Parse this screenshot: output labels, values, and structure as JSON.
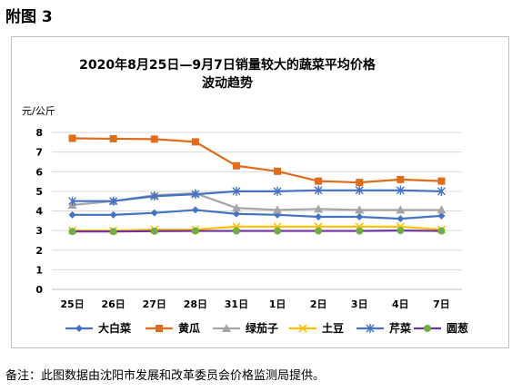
{
  "heading": "附图 3",
  "note": "备注：此图数据由沈阳市发展和改革委员会价格监测局提供。",
  "chart_data": {
    "type": "line",
    "title": [
      "2020年8月25日—9月7日销量较大的蔬菜平均价格",
      "波动趋势"
    ],
    "ylabel": "元/公斤",
    "categories": [
      "25日",
      "26日",
      "27日",
      "28日",
      "31日",
      "1日",
      "2日",
      "3日",
      "4日",
      "7日"
    ],
    "ylim": [
      0,
      8
    ],
    "yticks": [
      "0",
      "1",
      "2",
      "3",
      "4",
      "5",
      "6",
      "7",
      "8"
    ],
    "grid": "horizontal",
    "legend": "bottom",
    "series": [
      {
        "name": "大白菜",
        "color": "#4472c4",
        "marker": "diamond",
        "values": [
          3.8,
          3.8,
          3.9,
          4.05,
          3.85,
          3.8,
          3.7,
          3.7,
          3.6,
          3.75
        ]
      },
      {
        "name": "黄瓜",
        "color": "#e06c1c",
        "marker": "square",
        "values": [
          7.7,
          7.68,
          7.66,
          7.52,
          6.3,
          6.02,
          5.52,
          5.45,
          5.6,
          5.52
        ]
      },
      {
        "name": "绿茄子",
        "color": "#a5a5a5",
        "marker": "triangle",
        "values": [
          4.3,
          4.5,
          4.8,
          4.9,
          4.15,
          4.05,
          4.1,
          4.05,
          4.05,
          4.05
        ]
      },
      {
        "name": "土豆",
        "color": "#ffc000",
        "marker": "x",
        "values": [
          3.0,
          3.0,
          3.05,
          3.05,
          3.2,
          3.2,
          3.2,
          3.2,
          3.2,
          3.05
        ]
      },
      {
        "name": "芹菜",
        "color": "#4472c4",
        "marker": "asterisk",
        "values": [
          4.5,
          4.5,
          4.75,
          4.85,
          5.0,
          5.0,
          5.05,
          5.05,
          5.05,
          5.0
        ]
      },
      {
        "name": "圆葱",
        "color": "#7030a0",
        "marker": "circle",
        "markerFill": "#70ad47",
        "values": [
          2.95,
          2.95,
          2.97,
          2.98,
          2.98,
          2.98,
          2.98,
          2.98,
          3.0,
          2.98
        ]
      }
    ]
  }
}
